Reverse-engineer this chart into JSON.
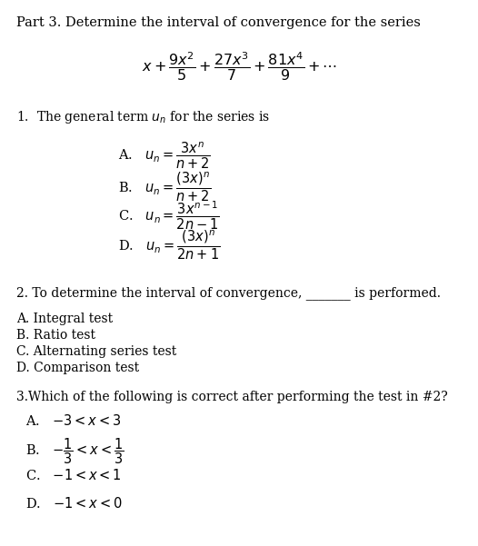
{
  "background_color": "#ffffff",
  "title": "Part 3. Determine the interval of convergence for the series",
  "series": "$x + \\dfrac{9x^2}{5} + \\dfrac{27x^3}{7} + \\dfrac{81x^4}{9} + \\cdots$",
  "q1_label": "1.  The general term $u_n$ for the series is",
  "q1_A": "A.   $u_n = \\dfrac{3x^n}{n+2}$",
  "q1_B": "B.   $u_n = \\dfrac{(3x)^n}{n+2}$",
  "q1_C": "C.   $u_n = \\dfrac{3x^{n-1}}{2n-1}$",
  "q1_D": "D.   $u_n = \\dfrac{(3x)^n}{2n+1}$",
  "q2_label": "2. To determine the interval of convergence, _______ is performed.",
  "q2_A": "A. Integral test",
  "q2_B": "B. Ratio test",
  "q2_C": "C. Alternating series test",
  "q2_D": "D. Comparison test",
  "q3_label": "3.Which of the following is correct after performing the test in #2?",
  "q3_A": "A.   $-3 < x < 3$",
  "q3_B": "B.   $-\\dfrac{1}{3} < x < \\dfrac{1}{3}$",
  "q3_C": "C.   $-1 < x < 1$",
  "q3_D": "D.   $-1 < x < 0$",
  "fs_title": 10.5,
  "fs_body": 10.0,
  "fs_series": 11.5,
  "fs_opt": 10.5
}
